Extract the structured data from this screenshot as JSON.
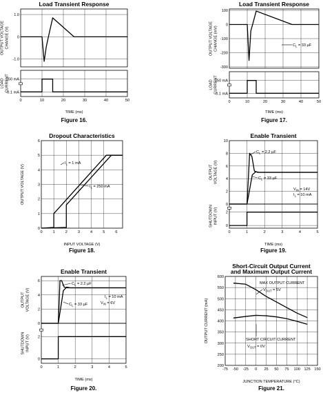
{
  "chart_data": [
    {
      "type": "line",
      "title": "Load Transient Response",
      "caption": "Figure 16.",
      "xlabel": "TIME (ms)",
      "x_ticks": [
        "0",
        "10",
        "20",
        "30",
        "40",
        "50"
      ],
      "panels": [
        {
          "ylabel_lines": [
            "OUTPUT VOLTAGE",
            "CHANGE (V)"
          ],
          "y_ticks": [
            {
              "v": 1.0,
              "t": "1.0"
            },
            {
              "v": 0,
              "t": "0"
            },
            {
              "v": -1.0,
              "t": "-1.0"
            }
          ],
          "ylim": [
            -1.35,
            1.25
          ],
          "series": [
            {
              "x": [
                0,
                10,
                11,
                12,
                13,
                15,
                25,
                50
              ],
              "y": [
                0,
                0,
                -1.1,
                -0.45,
                0,
                0.85,
                0,
                0
              ]
            }
          ]
        },
        {
          "ylabel_lines": [
            "LOAD",
            "CURRENT"
          ],
          "y_ticks": [
            {
              "v": 250,
              "t": "250 mA"
            },
            {
              "v": 0.1,
              "t": "0.1 mA"
            }
          ],
          "ylim": [
            -90,
            420
          ],
          "break_at": 160,
          "series": [
            {
              "x": [
                0,
                10,
                10,
                15,
                15,
                50
              ],
              "y": [
                0.1,
                0.1,
                250,
                250,
                0.1,
                0.1
              ]
            }
          ]
        }
      ],
      "annotations": []
    },
    {
      "type": "line",
      "title": "Load Transient Response",
      "caption": "Figure 17.",
      "xlabel": "TIME (ms)",
      "x_ticks": [
        "0",
        "10",
        "20",
        "30",
        "40",
        "50"
      ],
      "panels": [
        {
          "ylabel_lines": [
            "OUTPUT VOLTAGE",
            "CHANGE (mV)"
          ],
          "y_ticks": [
            {
              "v": 100,
              "t": "100"
            },
            {
              "v": 0,
              "t": "0"
            },
            {
              "v": -100,
              "t": "-100"
            },
            {
              "v": -200,
              "t": "-200"
            },
            {
              "v": -300,
              "t": "-300"
            }
          ],
          "ylim": [
            -310,
            110
          ],
          "series": [
            {
              "x": [
                0,
                10,
                11,
                12,
                13,
                15,
                35,
                50
              ],
              "y": [
                0,
                0,
                -255,
                -45,
                0,
                95,
                0,
                0
              ]
            }
          ]
        },
        {
          "ylabel_lines": [
            "LOAD",
            "CURRENT"
          ],
          "y_ticks": [
            {
              "v": 250,
              "t": "250 mA"
            },
            {
              "v": 0.1,
              "t": "0.1 mA"
            }
          ],
          "ylim": [
            -90,
            420
          ],
          "break_at": 160,
          "series": [
            {
              "x": [
                0,
                10,
                10,
                15,
                15,
                50
              ],
              "y": [
                0.1,
                0.1,
                250,
                250,
                0.1,
                0.1
              ]
            }
          ]
        }
      ],
      "annotations": [
        {
          "text": "C",
          "sub": "L",
          "after": " = 33 µF"
        }
      ]
    },
    {
      "type": "line",
      "title": "Dropout Characteristics",
      "caption": "Figure 18.",
      "xlabel": "INPUT VOLTAGE (V)",
      "x_ticks": [
        "0",
        "1",
        "2",
        "3",
        "4",
        "5",
        "6"
      ],
      "xlim": [
        0,
        6.5
      ],
      "panels": [
        {
          "ylabel_lines": [
            "OUTPUT VOLTAGE (V)"
          ],
          "y_ticks": [
            {
              "v": 0,
              "t": "0"
            },
            {
              "v": 1,
              "t": "1"
            },
            {
              "v": 2,
              "t": "2"
            },
            {
              "v": 3,
              "t": "3"
            },
            {
              "v": 4,
              "t": "4"
            },
            {
              "v": 5,
              "t": "5"
            },
            {
              "v": 6,
              "t": "6"
            }
          ],
          "ylim": [
            0,
            6
          ],
          "series": [
            {
              "name": "I_L = 1 mA",
              "x": [
                0,
                1,
                1,
                5.2,
                6.5
              ],
              "y": [
                0,
                0.05,
                1,
                5,
                5
              ]
            },
            {
              "name": "I_L = 250 mA",
              "x": [
                0,
                2,
                2,
                5.6,
                6.5
              ],
              "y": [
                0,
                0.05,
                1.6,
                5,
                5
              ]
            }
          ]
        }
      ],
      "annotations": [
        {
          "text": "I",
          "sub": "L",
          "after": " = 1 mA"
        },
        {
          "text": "I",
          "sub": "L",
          "after": " = 250 mA"
        }
      ]
    },
    {
      "type": "line",
      "title": "Enable Transient",
      "caption": "Figure 19.",
      "xlabel": "TIME (ms)",
      "x_ticks": [
        "0",
        "1",
        "2",
        "3",
        "4",
        "5"
      ],
      "panels": [
        {
          "ylabel_lines": [
            "OUTPUT",
            "VOLTAGE (V)"
          ],
          "y_ticks": [
            {
              "v": 0,
              "t": "0"
            },
            {
              "v": 2,
              "t": "2"
            },
            {
              "v": 4,
              "t": "4"
            },
            {
              "v": 6,
              "t": "6"
            },
            {
              "v": 8,
              "t": "8"
            },
            {
              "v": 10,
              "t": "10"
            }
          ],
          "ylim": [
            0,
            10
          ],
          "series": [
            {
              "name": "C_L = 2.2 µF",
              "x": [
                0,
                1,
                1.05,
                1.15,
                1.28,
                1.42,
                1.6,
                5
              ],
              "y": [
                0,
                0,
                2.5,
                8,
                7.5,
                5.2,
                5,
                5
              ]
            },
            {
              "name": "C_L = 33 µF",
              "x": [
                0,
                1,
                1.1,
                1.3,
                1.5,
                1.7,
                5
              ],
              "y": [
                0,
                0,
                1.5,
                4.6,
                5.1,
                5,
                5
              ]
            }
          ]
        },
        {
          "ylabel_lines": [
            "SHUTDOWN",
            "INPUT (V)"
          ],
          "y_ticks": [
            {
              "v": 2,
              "t": "2"
            },
            {
              "v": 0,
              "t": "0"
            }
          ],
          "ylim": [
            -0.4,
            3.2
          ],
          "break_at": 2.6,
          "series": [
            {
              "x": [
                0,
                1,
                1,
                5
              ],
              "y": [
                0,
                0,
                2,
                2
              ]
            }
          ]
        }
      ],
      "annotations": [
        {
          "text": "C",
          "sub": "L",
          "after": " = 2.2 µF"
        },
        {
          "text": "C",
          "sub": "L",
          "after": " = 33 µF"
        },
        {
          "text": "V",
          "sub": "IN",
          "after": " = 14V"
        },
        {
          "text": "I",
          "sub": "L",
          "after": " = 10 mA"
        }
      ]
    },
    {
      "type": "line",
      "title": "Enable Transient",
      "caption": "Figure 20.",
      "xlabel": "TIME (ms)",
      "x_ticks": [
        "0",
        "1",
        "2",
        "3",
        "4",
        "5"
      ],
      "panels": [
        {
          "ylabel_lines": [
            "OUTPUT",
            "VOLTAGE (V)"
          ],
          "y_ticks": [
            {
              "v": 0,
              "t": "0"
            },
            {
              "v": 2,
              "t": "2"
            },
            {
              "v": 4,
              "t": "4"
            },
            {
              "v": 6,
              "t": "6"
            }
          ],
          "ylim": [
            0,
            6.6
          ],
          "series": [
            {
              "name": "C_L = 2.2 µF",
              "x": [
                0,
                1,
                1.05,
                1.1,
                1.2,
                1.35,
                1.5,
                5
              ],
              "y": [
                0,
                0,
                2.8,
                6,
                6,
                5.1,
                5,
                5
              ]
            },
            {
              "name": "C_L = 33 µF",
              "x": [
                0,
                1,
                1.1,
                1.3,
                1.5,
                1.7,
                5
              ],
              "y": [
                0,
                0,
                1.5,
                4.6,
                5.1,
                5,
                5
              ]
            }
          ]
        },
        {
          "ylabel_lines": [
            "SHUTDOWN",
            "INPUT (V)"
          ],
          "y_ticks": [
            {
              "v": 2,
              "t": "2"
            },
            {
              "v": 0,
              "t": "0"
            }
          ],
          "ylim": [
            -0.4,
            3.2
          ],
          "break_at": 2.6,
          "series": [
            {
              "x": [
                0,
                1,
                1,
                5
              ],
              "y": [
                0,
                0,
                2,
                2
              ]
            }
          ]
        }
      ],
      "annotations": [
        {
          "text": "C",
          "sub": "L",
          "after": " = 2.2 µF"
        },
        {
          "text": "C",
          "sub": "L",
          "after": " = 33 µF"
        },
        {
          "text": "I",
          "sub": "L",
          "after": " = 10 mA"
        },
        {
          "text": "V",
          "sub": "IN",
          "after": " = 6V"
        }
      ]
    },
    {
      "type": "line",
      "title": "Short-Circuit Output Current and Maximum Output Current",
      "title_lines": [
        "Short-Circuit Output Current",
        "and Maximum Output Current"
      ],
      "caption": "Figure 21.",
      "xlabel": "JUNCTION TEMPERATURE (°C)",
      "x_ticks": [
        "-75",
        "-50",
        "-25",
        "0",
        "25",
        "50",
        "75",
        "100",
        "125",
        "150"
      ],
      "xlim": [
        -75,
        150
      ],
      "panels": [
        {
          "ylabel_lines": [
            "OUTPUT CURRENT (mA)"
          ],
          "y_ticks": [
            {
              "v": 200,
              "t": "200"
            },
            {
              "v": 250,
              "t": "250"
            },
            {
              "v": 300,
              "t": "300"
            },
            {
              "v": 350,
              "t": "350"
            },
            {
              "v": 400,
              "t": "400"
            },
            {
              "v": 450,
              "t": "450"
            },
            {
              "v": 500,
              "t": "500"
            },
            {
              "v": 550,
              "t": "550"
            },
            {
              "v": 600,
              "t": "600"
            }
          ],
          "ylim": [
            200,
            600
          ],
          "series": [
            {
              "name": "MAX OUTPUT CURRENT V_OUT = 5V",
              "x": [
                -55,
                -25,
                0,
                25,
                50,
                75,
                100,
                125
              ],
              "y": [
                570,
                565,
                540,
                510,
                485,
                460,
                435,
                415
              ]
            },
            {
              "name": "SHORT CIRCUIT CURRENT V_OUT = 0V",
              "x": [
                -55,
                -25,
                0,
                25,
                50,
                75,
                100,
                125
              ],
              "y": [
                413,
                420,
                425,
                423,
                418,
                410,
                398,
                385
              ]
            }
          ]
        }
      ],
      "annotations": [
        {
          "text": "MAX OUTPUT CURRENT"
        },
        {
          "text": "V",
          "sub": "OUT",
          "after": " = 5V"
        },
        {
          "text": "SHORT CIRCUIT CURRENT"
        },
        {
          "text": "V",
          "sub": "OUT",
          "after": " = 0V"
        }
      ]
    }
  ]
}
